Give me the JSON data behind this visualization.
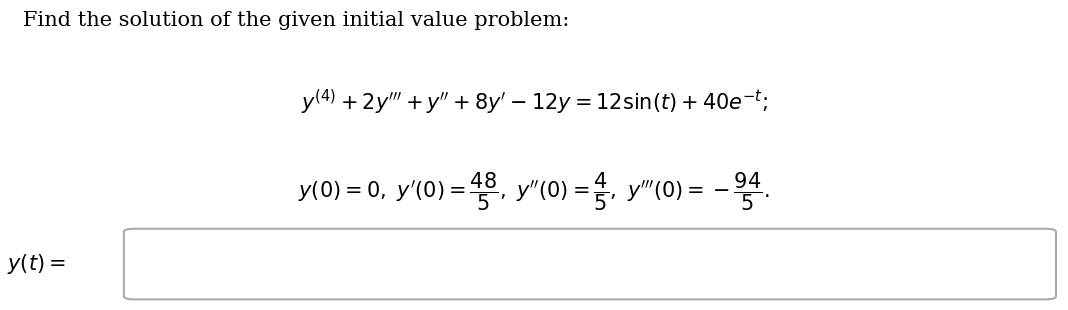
{
  "title_text": "Find the solution of the given initial value problem:",
  "bg_color": "#ffffff",
  "text_color": "#000000",
  "box_color": "#aaaaaa",
  "title_fontsize": 15,
  "eq_fontsize": 15,
  "label_fontsize": 15
}
